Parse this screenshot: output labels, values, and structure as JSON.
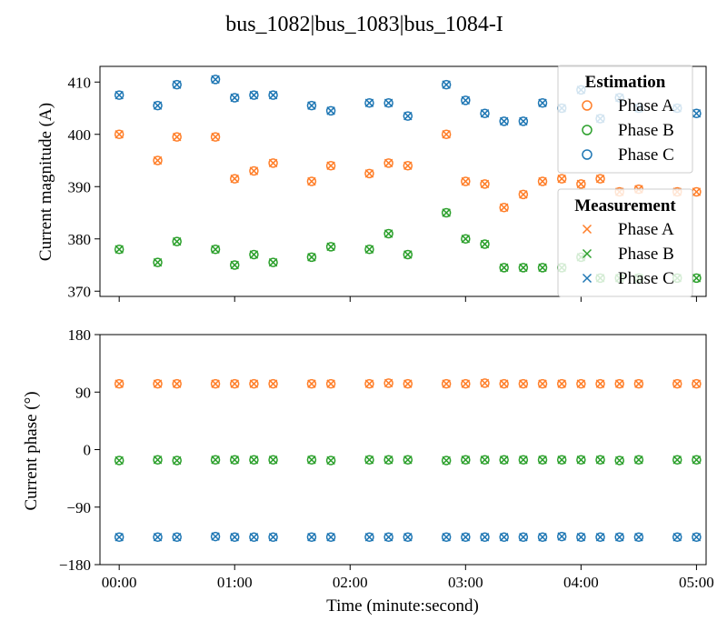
{
  "chart_data": [
    {
      "type": "scatter",
      "title": "bus_1082|bus_1083|bus_1084-I",
      "ylabel": "Current magnitude (A)",
      "xlabel": "",
      "xlim": [
        -10,
        305
      ],
      "ylim": [
        369,
        413
      ],
      "yticks": [
        370,
        380,
        390,
        400,
        410
      ],
      "xticks": [
        0,
        60,
        120,
        180,
        240,
        300
      ],
      "grid": false,
      "x": [
        0,
        20,
        30,
        50,
        60,
        70,
        80,
        100,
        110,
        130,
        140,
        150,
        170,
        180,
        190,
        200,
        210,
        220,
        230,
        240,
        250,
        260,
        270,
        290,
        300
      ],
      "series": [
        {
          "name": "Phase A",
          "group": "Estimation",
          "marker": "circle",
          "color": "#ff7f2a",
          "values": [
            400,
            395,
            399.5,
            399.5,
            391.5,
            393,
            394.5,
            391,
            394,
            392.5,
            394.5,
            394,
            400,
            391,
            390.5,
            386,
            388.5,
            391,
            391.5,
            390.5,
            391.5,
            389,
            389.5,
            389,
            389
          ]
        },
        {
          "name": "Phase B",
          "group": "Estimation",
          "marker": "circle",
          "color": "#2ca02c",
          "values": [
            378,
            375.5,
            379.5,
            378,
            375,
            377,
            375.5,
            376.5,
            378.5,
            378,
            381,
            377,
            385,
            380,
            379,
            374.5,
            374.5,
            374.5,
            374.5,
            376.5,
            372.5,
            372.5,
            372.5,
            372.5,
            372.5
          ]
        },
        {
          "name": "Phase C",
          "group": "Estimation",
          "marker": "circle",
          "color": "#1f77b4",
          "values": [
            407.5,
            405.5,
            409.5,
            410.5,
            407,
            407.5,
            407.5,
            405.5,
            404.5,
            406,
            406,
            403.5,
            409.5,
            406.5,
            404,
            402.5,
            402.5,
            406,
            405,
            408.5,
            403,
            407,
            405,
            405,
            404
          ]
        },
        {
          "name": "Phase A",
          "group": "Measurement",
          "marker": "x",
          "color": "#ff7f2a",
          "values": [
            400,
            395,
            399.5,
            399.5,
            391.5,
            393,
            394.5,
            391,
            394,
            392.5,
            394.5,
            394,
            400,
            391,
            390.5,
            386,
            388.5,
            391,
            391.5,
            390.5,
            391.5,
            389,
            389.5,
            389,
            389
          ]
        },
        {
          "name": "Phase B",
          "group": "Measurement",
          "marker": "x",
          "color": "#2ca02c",
          "values": [
            378,
            375.5,
            379.5,
            378,
            375,
            377,
            375.5,
            376.5,
            378.5,
            378,
            381,
            377,
            385,
            380,
            379,
            374.5,
            374.5,
            374.5,
            374.5,
            376.5,
            372.5,
            372.5,
            372.5,
            372.5,
            372.5
          ]
        },
        {
          "name": "Phase C",
          "group": "Measurement",
          "marker": "x",
          "color": "#1f77b4",
          "values": [
            407.5,
            405.5,
            409.5,
            410.5,
            407,
            407.5,
            407.5,
            405.5,
            404.5,
            406,
            406,
            403.5,
            409.5,
            406.5,
            404,
            402.5,
            402.5,
            406,
            405,
            408.5,
            403,
            407,
            405,
            405,
            404
          ]
        }
      ],
      "legend": {
        "placement": "upper-right",
        "groups": [
          {
            "title": "Estimation",
            "marker": "circle",
            "entries": [
              {
                "label": "Phase A",
                "color": "#ff7f2a"
              },
              {
                "label": "Phase B",
                "color": "#2ca02c"
              },
              {
                "label": "Phase C",
                "color": "#1f77b4"
              }
            ]
          },
          {
            "title": "Measurement",
            "marker": "x",
            "entries": [
              {
                "label": "Phase A",
                "color": "#ff7f2a"
              },
              {
                "label": "Phase B",
                "color": "#2ca02c"
              },
              {
                "label": "Phase C",
                "color": "#1f77b4"
              }
            ]
          }
        ]
      }
    },
    {
      "type": "scatter",
      "title": "",
      "ylabel": "Current phase (°)",
      "xlabel": "Time (minute:second)",
      "xlim": [
        -10,
        305
      ],
      "ylim": [
        -180,
        180
      ],
      "yticks": [
        -180,
        -90,
        0,
        90,
        180
      ],
      "ytick_labels": [
        "−180",
        "−90",
        "0",
        "90",
        "180"
      ],
      "xticks": [
        0,
        60,
        120,
        180,
        240,
        300
      ],
      "xtick_labels": [
        "00:00",
        "01:00",
        "02:00",
        "03:00",
        "04:00",
        "05:00"
      ],
      "grid": false,
      "x": [
        0,
        20,
        30,
        50,
        60,
        70,
        80,
        100,
        110,
        130,
        140,
        150,
        170,
        180,
        190,
        200,
        210,
        220,
        230,
        240,
        250,
        260,
        270,
        290,
        300
      ],
      "series": [
        {
          "name": "Phase A",
          "group": "Estimation",
          "marker": "circle",
          "color": "#ff7f2a",
          "values": [
            103,
            103,
            103,
            103,
            103,
            103,
            103,
            103,
            103,
            103,
            104,
            103,
            103,
            103,
            104,
            103,
            103,
            103,
            103,
            103,
            103,
            103,
            103,
            103,
            103
          ]
        },
        {
          "name": "Phase B",
          "group": "Estimation",
          "marker": "circle",
          "color": "#2ca02c",
          "values": [
            -17,
            -16,
            -17,
            -16,
            -16,
            -16,
            -16,
            -16,
            -17,
            -16,
            -16,
            -16,
            -17,
            -16,
            -16,
            -16,
            -16,
            -16,
            -16,
            -16,
            -16,
            -17,
            -16,
            -16,
            -16
          ]
        },
        {
          "name": "Phase C",
          "group": "Estimation",
          "marker": "circle",
          "color": "#1f77b4",
          "values": [
            -137,
            -137,
            -137,
            -136,
            -137,
            -137,
            -137,
            -137,
            -137,
            -137,
            -137,
            -137,
            -137,
            -137,
            -137,
            -137,
            -137,
            -137,
            -136,
            -137,
            -137,
            -137,
            -137,
            -137,
            -137
          ]
        },
        {
          "name": "Phase A",
          "group": "Measurement",
          "marker": "x",
          "color": "#ff7f2a",
          "values": [
            103,
            103,
            103,
            103,
            103,
            103,
            103,
            103,
            103,
            103,
            104,
            103,
            103,
            103,
            104,
            103,
            103,
            103,
            103,
            103,
            103,
            103,
            103,
            103,
            103
          ]
        },
        {
          "name": "Phase B",
          "group": "Measurement",
          "marker": "x",
          "color": "#2ca02c",
          "values": [
            -17,
            -16,
            -17,
            -16,
            -16,
            -16,
            -16,
            -16,
            -17,
            -16,
            -16,
            -16,
            -17,
            -16,
            -16,
            -16,
            -16,
            -16,
            -16,
            -16,
            -16,
            -17,
            -16,
            -16,
            -16
          ]
        },
        {
          "name": "Phase C",
          "group": "Measurement",
          "marker": "x",
          "color": "#1f77b4",
          "values": [
            -137,
            -137,
            -137,
            -136,
            -137,
            -137,
            -137,
            -137,
            -137,
            -137,
            -137,
            -137,
            -137,
            -137,
            -137,
            -137,
            -137,
            -137,
            -136,
            -137,
            -137,
            -137,
            -137,
            -137,
            -137
          ]
        }
      ]
    }
  ]
}
